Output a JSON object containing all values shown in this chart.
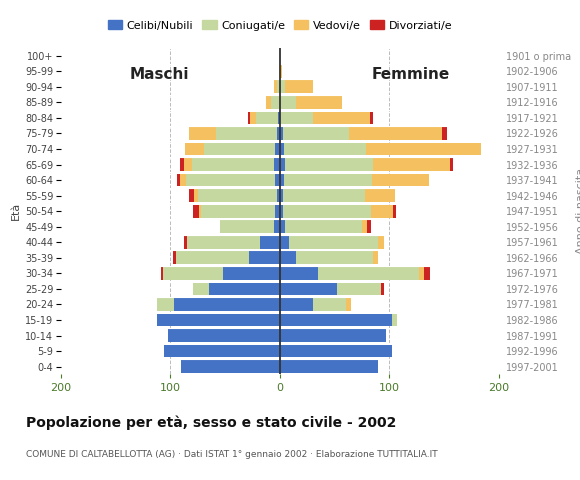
{
  "age_groups": [
    "0-4",
    "5-9",
    "10-14",
    "15-19",
    "20-24",
    "25-29",
    "30-34",
    "35-39",
    "40-44",
    "45-49",
    "50-54",
    "55-59",
    "60-64",
    "65-69",
    "70-74",
    "75-79",
    "80-84",
    "85-89",
    "90-94",
    "95-99",
    "100+"
  ],
  "birth_years": [
    "1997-2001",
    "1992-1996",
    "1987-1991",
    "1982-1986",
    "1977-1981",
    "1972-1976",
    "1967-1971",
    "1962-1966",
    "1957-1961",
    "1952-1956",
    "1947-1951",
    "1942-1946",
    "1937-1941",
    "1932-1936",
    "1927-1931",
    "1922-1926",
    "1917-1921",
    "1912-1916",
    "1907-1911",
    "1902-1906",
    "1901 o prima"
  ],
  "males_celibi": [
    90,
    106,
    102,
    112,
    97,
    65,
    52,
    28,
    18,
    5,
    4,
    3,
    4,
    5,
    4,
    3,
    2,
    0,
    0,
    0,
    0
  ],
  "males_coniugati": [
    0,
    0,
    0,
    0,
    15,
    14,
    55,
    67,
    67,
    50,
    68,
    72,
    82,
    75,
    65,
    55,
    20,
    8,
    3,
    0,
    0
  ],
  "males_vedovi": [
    0,
    0,
    0,
    0,
    0,
    0,
    0,
    0,
    0,
    0,
    2,
    3,
    5,
    8,
    18,
    25,
    5,
    5,
    2,
    0,
    0
  ],
  "males_divorziati": [
    0,
    0,
    0,
    0,
    0,
    0,
    2,
    3,
    3,
    0,
    5,
    5,
    3,
    3,
    0,
    0,
    2,
    0,
    0,
    0,
    0
  ],
  "females_nubili": [
    90,
    102,
    97,
    102,
    30,
    52,
    35,
    15,
    8,
    5,
    3,
    3,
    4,
    5,
    4,
    3,
    0,
    0,
    0,
    0,
    0
  ],
  "females_coniugate": [
    0,
    0,
    0,
    5,
    30,
    40,
    92,
    70,
    82,
    70,
    80,
    75,
    80,
    80,
    75,
    60,
    30,
    15,
    5,
    0,
    0
  ],
  "females_vedove": [
    0,
    0,
    0,
    0,
    5,
    0,
    5,
    5,
    5,
    5,
    20,
    27,
    52,
    70,
    105,
    85,
    52,
    42,
    25,
    2,
    0
  ],
  "females_divorziate": [
    0,
    0,
    0,
    0,
    0,
    3,
    5,
    0,
    0,
    3,
    3,
    0,
    0,
    3,
    0,
    5,
    3,
    0,
    0,
    0,
    0
  ],
  "color_celibi": "#4472c4",
  "color_coniugati": "#c5d8a0",
  "color_vedovi": "#f5c060",
  "color_divorziati": "#cc2222",
  "xlim": 200,
  "title": "Popolazione per età, sesso e stato civile - 2002",
  "subtitle": "COMUNE DI CALTABELLOTTA (AG) · Dati ISTAT 1° gennaio 2002 · Elaborazione TUTTITALIA.IT",
  "legend_labels": [
    "Celibi/Nubili",
    "Coniugati/e",
    "Vedovi/e",
    "Divorziati/e"
  ],
  "bg_color": "#ffffff",
  "bar_height": 0.82
}
